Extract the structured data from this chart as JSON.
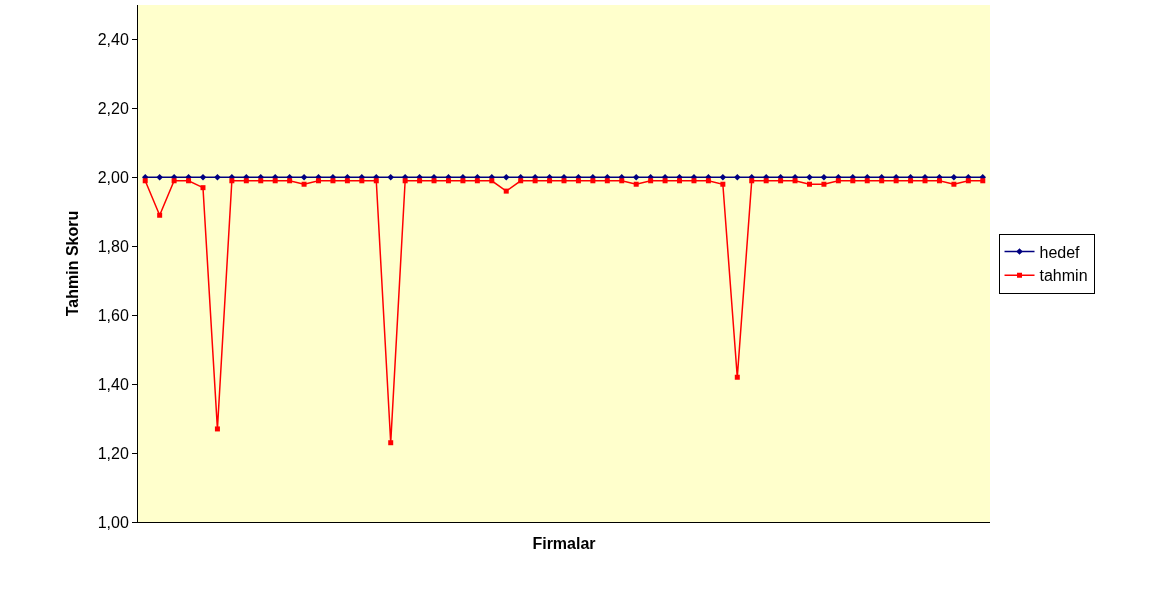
{
  "chart_data": {
    "type": "line",
    "xlabel": "Firmalar",
    "ylabel": "Tahmin Skoru",
    "categories": [
      null,
      null,
      null,
      null,
      null,
      null,
      null,
      null,
      null,
      null,
      null,
      null,
      null,
      null,
      null,
      null,
      null,
      null,
      null,
      null,
      null,
      null,
      null,
      null,
      null,
      null,
      null,
      null,
      null,
      null,
      null,
      null,
      null,
      null,
      null,
      null,
      null,
      null,
      null,
      null,
      null,
      null,
      null,
      null,
      null,
      null,
      null,
      null,
      null,
      null,
      null,
      null,
      null,
      null,
      null,
      null,
      null,
      null,
      null
    ],
    "series": [
      {
        "name": "hedef",
        "color": "#000080",
        "marker": "diamond",
        "values": [
          2,
          2,
          2,
          2,
          2,
          2,
          2,
          2,
          2,
          2,
          2,
          2,
          2,
          2,
          2,
          2,
          2,
          2,
          2,
          2,
          2,
          2,
          2,
          2,
          2,
          2,
          2,
          2,
          2,
          2,
          2,
          2,
          2,
          2,
          2,
          2,
          2,
          2,
          2,
          2,
          2,
          2,
          2,
          2,
          2,
          2,
          2,
          2,
          2,
          2,
          2,
          2,
          2,
          2,
          2,
          2,
          2,
          2,
          2
        ]
      },
      {
        "name": "tahmin",
        "color": "#ff0000",
        "marker": "square",
        "values": [
          1.99,
          1.89,
          1.99,
          1.99,
          1.97,
          1.27,
          1.99,
          1.99,
          1.99,
          1.99,
          1.99,
          1.98,
          1.99,
          1.99,
          1.99,
          1.99,
          1.99,
          1.23,
          1.99,
          1.99,
          1.99,
          1.99,
          1.99,
          1.99,
          1.99,
          1.96,
          1.99,
          1.99,
          1.99,
          1.99,
          1.99,
          1.99,
          1.99,
          1.99,
          1.98,
          1.99,
          1.99,
          1.99,
          1.99,
          1.99,
          1.98,
          1.42,
          1.99,
          1.99,
          1.99,
          1.99,
          1.98,
          1.98,
          1.99,
          1.99,
          1.99,
          1.99,
          1.99,
          1.99,
          1.99,
          1.99,
          1.98,
          1.99,
          1.99
        ]
      }
    ],
    "ylim": [
      1.0,
      2.5
    ],
    "yticks": [
      {
        "value": 1.0,
        "label": "1,00"
      },
      {
        "value": 1.2,
        "label": "1,20"
      },
      {
        "value": 1.4,
        "label": "1,40"
      },
      {
        "value": 1.6,
        "label": "1,60"
      },
      {
        "value": 1.8,
        "label": "1,80"
      },
      {
        "value": 2.0,
        "label": "2,00"
      },
      {
        "value": 2.2,
        "label": "2,20"
      },
      {
        "value": 2.4,
        "label": "2,40"
      }
    ],
    "tick_labels": "y",
    "legend": "right",
    "grid": false,
    "line_style": "solid"
  }
}
